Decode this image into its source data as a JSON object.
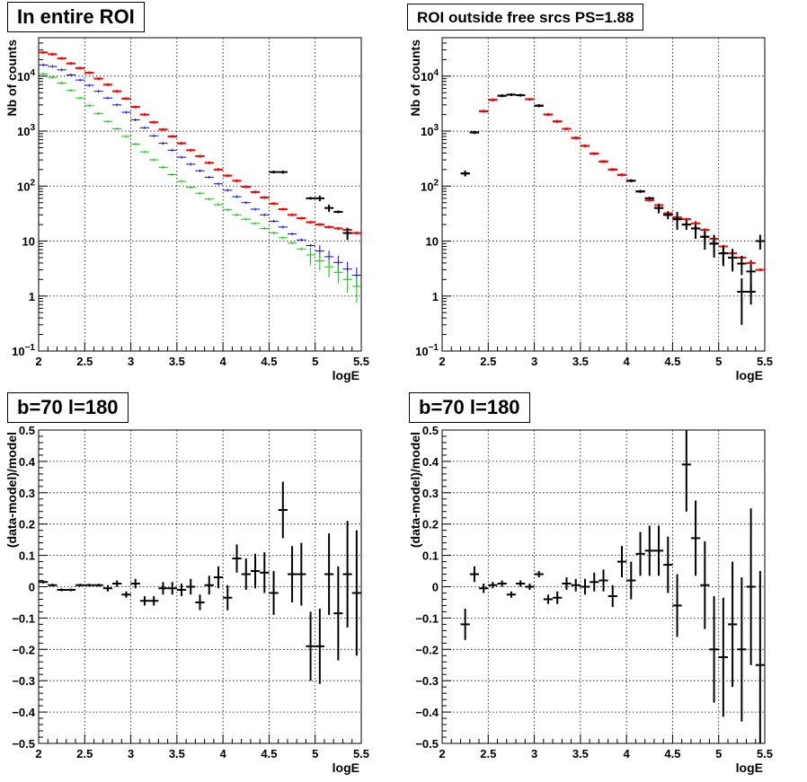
{
  "chart_data": [
    {
      "type": "scatter",
      "title": "In entire ROI",
      "xlabel": "logE",
      "ylabel": "Nb of counts",
      "xlim": [
        2,
        5.5
      ],
      "ylim": [
        0.1,
        50000
      ],
      "yscale": "log",
      "xticks": [
        "2",
        "2.5",
        "3",
        "3.5",
        "4",
        "4.5",
        "5",
        "5.5"
      ],
      "yticks": [
        {
          "v": 0.1,
          "base": "10",
          "exp": "−1"
        },
        {
          "v": 1,
          "base": "1"
        },
        {
          "v": 10,
          "base": "10"
        },
        {
          "v": 100,
          "base": "10",
          "exp": "2"
        },
        {
          "v": 1000,
          "base": "10",
          "exp": "3"
        },
        {
          "v": 10000,
          "base": "10",
          "exp": "4"
        }
      ],
      "grid": true,
      "series": [
        {
          "color": "#ff0000",
          "width": 2,
          "x": [
            2.05,
            2.15,
            2.25,
            2.35,
            2.45,
            2.55,
            2.65,
            2.75,
            2.85,
            2.95,
            3.05,
            3.15,
            3.25,
            3.35,
            3.45,
            3.55,
            3.65,
            3.75,
            3.85,
            3.95,
            4.05,
            4.15,
            4.25,
            4.35,
            4.45,
            4.55,
            4.65,
            4.75,
            4.85,
            4.95,
            5.05,
            5.15,
            5.25,
            5.35,
            5.45
          ],
          "y": [
            27000,
            25000,
            21000,
            17000,
            14000,
            11500,
            9000,
            7000,
            5300,
            3900,
            2750,
            2000,
            1450,
            1070,
            800,
            600,
            450,
            350,
            265,
            200,
            155,
            125,
            97,
            78,
            62,
            48,
            38,
            30,
            26,
            22,
            20,
            18,
            17,
            16,
            14
          ],
          "yerr": [
            0,
            0,
            0,
            0,
            0,
            0,
            0,
            0,
            0,
            0,
            0,
            0,
            0,
            0,
            0,
            0,
            0,
            0,
            0,
            0,
            0,
            0,
            0,
            0,
            0,
            0,
            0,
            0,
            0,
            0,
            0,
            0,
            0,
            0,
            0
          ]
        },
        {
          "color": "#0000ff",
          "width": 1,
          "x": [
            2.05,
            2.15,
            2.25,
            2.35,
            2.45,
            2.55,
            2.65,
            2.75,
            2.85,
            2.95,
            3.05,
            3.15,
            3.25,
            3.35,
            3.45,
            3.55,
            3.65,
            3.75,
            3.85,
            3.95,
            4.05,
            4.15,
            4.25,
            4.35,
            4.45,
            4.55,
            4.65,
            4.75,
            4.85,
            4.95,
            5.05,
            5.15,
            5.25,
            5.35,
            5.45
          ],
          "y": [
            16000,
            15000,
            13000,
            10500,
            8500,
            6800,
            5300,
            4000,
            3000,
            2200,
            1600,
            1150,
            820,
            600,
            450,
            335,
            250,
            190,
            145,
            110,
            84,
            64,
            50,
            38,
            30,
            23,
            18,
            13.5,
            10.5,
            8.3,
            6.6,
            5.2,
            4.1,
            3.1,
            2.4
          ],
          "yerr": [
            0,
            0,
            0,
            0,
            0,
            0,
            0,
            0,
            0,
            0,
            0,
            0,
            0,
            0,
            0,
            0,
            0,
            0,
            0,
            0,
            0,
            0,
            0,
            0,
            0,
            0,
            0,
            0,
            0,
            0,
            1.8,
            1.5,
            1.3,
            1.1,
            0.9
          ]
        },
        {
          "color": "#00cc00",
          "width": 1,
          "x": [
            2.05,
            2.15,
            2.25,
            2.35,
            2.45,
            2.55,
            2.65,
            2.75,
            2.85,
            2.95,
            3.05,
            3.15,
            3.25,
            3.35,
            3.45,
            3.55,
            3.65,
            3.75,
            3.85,
            3.95,
            4.05,
            4.15,
            4.25,
            4.35,
            4.45,
            4.55,
            4.65,
            4.75,
            4.85,
            4.95,
            5.05,
            5.15,
            5.25,
            5.35,
            5.45
          ],
          "y": [
            11000,
            9500,
            7500,
            5500,
            4000,
            2900,
            2100,
            1500,
            1100,
            800,
            580,
            420,
            300,
            220,
            162,
            122,
            95,
            74,
            58,
            46,
            37,
            30,
            25,
            21,
            17,
            14,
            11.5,
            9.2,
            7.2,
            5.6,
            4.4,
            3.4,
            2.7,
            2.0,
            1.5
          ],
          "yerr": [
            0,
            0,
            0,
            0,
            0,
            0,
            0,
            0,
            0,
            0,
            0,
            0,
            0,
            0,
            0,
            0,
            0,
            0,
            0,
            0,
            0,
            0,
            0,
            0,
            0,
            0,
            0,
            0,
            0,
            2.0,
            1.5,
            1.2,
            1.0,
            0.85,
            0.75
          ]
        },
        {
          "color": "#000000",
          "width": 2,
          "x": [
            4.55,
            4.65,
            4.95,
            5.05,
            5.15,
            5.25,
            5.35
          ],
          "y": [
            180,
            180,
            60,
            60,
            40,
            34,
            14
          ],
          "yerr": [
            0,
            12,
            0,
            7,
            6,
            0,
            3.5
          ]
        }
      ]
    },
    {
      "type": "scatter",
      "title": "ROI outside free srcs PS=1.88",
      "xlabel": "logE",
      "ylabel": "Nb of counts",
      "xlim": [
        2,
        5.5
      ],
      "ylim": [
        0.1,
        50000
      ],
      "yscale": "log",
      "xticks": [
        "2",
        "2.5",
        "3",
        "3.5",
        "4",
        "4.5",
        "5",
        "5.5"
      ],
      "yticks": [
        {
          "v": 0.1,
          "base": "10",
          "exp": "−1"
        },
        {
          "v": 1,
          "base": "1"
        },
        {
          "v": 10,
          "base": "10"
        },
        {
          "v": 100,
          "base": "10",
          "exp": "2"
        },
        {
          "v": 1000,
          "base": "10",
          "exp": "3"
        },
        {
          "v": 10000,
          "base": "10",
          "exp": "4"
        }
      ],
      "grid": true,
      "series": [
        {
          "color": "#000000",
          "width": 2,
          "x": [
            2.25,
            2.35,
            2.45,
            2.55,
            2.65,
            2.75,
            2.85,
            2.95,
            3.05,
            3.15,
            3.25,
            3.35,
            3.45,
            3.55,
            3.65,
            3.75,
            3.85,
            3.95,
            4.05,
            4.15,
            4.25,
            4.35,
            4.45,
            4.55,
            4.65,
            4.75,
            4.85,
            4.95,
            5.05,
            5.15,
            5.25,
            5.35,
            5.45
          ],
          "y": [
            170,
            950,
            2300,
            3700,
            4400,
            4600,
            4500,
            3800,
            2900,
            2000,
            1500,
            1100,
            750,
            540,
            390,
            280,
            200,
            160,
            125,
            80,
            60,
            40,
            30,
            25,
            20,
            17,
            12,
            9,
            6,
            5,
            1.2,
            2.8,
            10
          ],
          "yerr": [
            20,
            0,
            0,
            0,
            0,
            0,
            0,
            0,
            0,
            0,
            0,
            0,
            0,
            0,
            0,
            0,
            0,
            0,
            0,
            0,
            0,
            8,
            0,
            9,
            0,
            6,
            5,
            4,
            2.5,
            2.2,
            0.9,
            1.7,
            3
          ]
        },
        {
          "color": "#ff0000",
          "width": 2,
          "x": [
            2.25,
            2.35,
            2.45,
            2.55,
            2.65,
            2.75,
            2.85,
            2.95,
            3.05,
            3.15,
            3.25,
            3.35,
            3.45,
            3.55,
            3.65,
            3.75,
            3.85,
            3.95,
            4.05,
            4.15,
            4.25,
            4.35,
            4.45,
            4.55,
            4.65,
            4.75,
            4.85,
            4.95,
            5.05,
            5.15,
            5.25,
            5.35,
            5.45
          ],
          "y": [
            170,
            940,
            2300,
            3700,
            4400,
            4600,
            4500,
            3800,
            2900,
            2000,
            1500,
            1100,
            750,
            540,
            390,
            280,
            200,
            160,
            125,
            80,
            55,
            45,
            32,
            27,
            25,
            21,
            16,
            11,
            8,
            6,
            5,
            4,
            3
          ],
          "yerr": [
            0,
            0,
            0,
            0,
            0,
            0,
            0,
            0,
            0,
            0,
            0,
            0,
            0,
            0,
            0,
            0,
            0,
            0,
            0,
            0,
            0,
            0,
            0,
            0,
            0,
            0,
            0,
            0,
            0,
            0,
            0,
            0,
            0
          ]
        },
        {
          "color": "#000000",
          "width": 2,
          "x": [
            2.25,
            2.35,
            2.65,
            2.75,
            2.85,
            3.05,
            4.05,
            4.15,
            4.25,
            4.35,
            4.45,
            4.55,
            4.65,
            4.75,
            4.85,
            4.95,
            5.05,
            5.15,
            5.25,
            5.35
          ],
          "y": [
            170,
            950,
            4400,
            4600,
            4500,
            2900,
            125,
            80,
            60,
            40,
            30,
            25,
            20,
            17,
            12,
            9,
            6,
            5,
            3.9,
            1.2
          ],
          "yerr": [
            20,
            60,
            0,
            0,
            0,
            0,
            0,
            0,
            0,
            7,
            5,
            5,
            4,
            3,
            3,
            3,
            2,
            2,
            1.5,
            0.5
          ]
        }
      ]
    },
    {
      "type": "scatter",
      "title": "b=70 l=180",
      "xlabel": "logE",
      "ylabel": "(data-model)/model",
      "xlim": [
        2,
        5.5
      ],
      "ylim": [
        -0.5,
        0.5
      ],
      "yscale": "linear",
      "xticks": [
        "2",
        "2.5",
        "3",
        "3.5",
        "4",
        "4.5",
        "5",
        "5.5"
      ],
      "yticks": [
        "−0.5",
        "−0.4",
        "−0.3",
        "−0.2",
        "−0.1",
        "0",
        "0.1",
        "0.2",
        "0.3",
        "0.4",
        "0.5"
      ],
      "grid": true,
      "series": [
        {
          "color": "#000000",
          "width": 2,
          "x": [
            2.05,
            2.15,
            2.25,
            2.35,
            2.45,
            2.55,
            2.65,
            2.75,
            2.85,
            2.95,
            3.05,
            3.15,
            3.25,
            3.35,
            3.45,
            3.55,
            3.65,
            3.75,
            3.85,
            3.95,
            4.05,
            4.15,
            4.25,
            4.35,
            4.45,
            4.55,
            4.65,
            4.75,
            4.85,
            4.95,
            5.05,
            5.15,
            5.25,
            5.35,
            5.45
          ],
          "y": [
            0.015,
            0.005,
            -0.01,
            -0.01,
            0.005,
            0.005,
            0.005,
            -0.005,
            0.01,
            -0.025,
            0.01,
            -0.045,
            -0.045,
            -0.005,
            -0.005,
            -0.01,
            0,
            -0.05,
            0.005,
            0.03,
            -0.035,
            0.09,
            0.04,
            0.05,
            0.045,
            -0.02,
            0.245,
            0.04,
            0.04,
            -0.19,
            -0.19,
            0.04,
            -0.085,
            0.04,
            -0.02
          ],
          "yerr": [
            0,
            0,
            0,
            0,
            0,
            0,
            0,
            0.01,
            0.01,
            0.01,
            0.015,
            0.015,
            0.015,
            0.02,
            0.02,
            0.02,
            0.025,
            0.025,
            0.03,
            0.035,
            0.04,
            0.045,
            0.05,
            0.055,
            0.065,
            0.07,
            0.09,
            0.09,
            0.1,
            0.11,
            0.12,
            0.13,
            0.15,
            0.17,
            0.2
          ]
        }
      ]
    },
    {
      "type": "scatter",
      "title": "b=70 l=180",
      "xlabel": "logE",
      "ylabel": "(data-model)/model",
      "xlim": [
        2,
        5.5
      ],
      "ylim": [
        -0.5,
        0.5
      ],
      "yscale": "linear",
      "xticks": [
        "2",
        "2.5",
        "3",
        "3.5",
        "4",
        "4.5",
        "5",
        "5.5"
      ],
      "yticks": [
        "−0.5",
        "−0.4",
        "−0.3",
        "−0.2",
        "−0.1",
        "0",
        "0.1",
        "0.2",
        "0.3",
        "0.4",
        "0.5"
      ],
      "grid": true,
      "series": [
        {
          "color": "#000000",
          "width": 2,
          "x": [
            2.25,
            2.35,
            2.45,
            2.55,
            2.65,
            2.75,
            2.85,
            2.95,
            3.05,
            3.15,
            3.25,
            3.35,
            3.45,
            3.55,
            3.65,
            3.75,
            3.85,
            3.95,
            4.05,
            4.15,
            4.25,
            4.35,
            4.45,
            4.55,
            4.65,
            4.75,
            4.85,
            4.95,
            5.05,
            5.15,
            5.25,
            5.35,
            5.45
          ],
          "y": [
            -0.12,
            0.04,
            -0.005,
            0.005,
            0.01,
            -0.025,
            0.01,
            0,
            0.04,
            -0.04,
            -0.035,
            0.01,
            0.005,
            0,
            0.015,
            0.02,
            -0.03,
            0.08,
            0.02,
            0.105,
            0.115,
            0.115,
            0.07,
            -0.06,
            0.39,
            0.155,
            0.005,
            -0.2,
            -0.225,
            -0.12,
            -0.2,
            0,
            -0.25
          ],
          "yerr": [
            0.05,
            0.025,
            0.015,
            0.01,
            0.01,
            0.01,
            0.01,
            0.01,
            0.01,
            0.015,
            0.02,
            0.02,
            0.02,
            0.025,
            0.03,
            0.035,
            0.035,
            0.05,
            0.06,
            0.07,
            0.08,
            0.08,
            0.09,
            0.1,
            0.15,
            0.12,
            0.14,
            0.17,
            0.19,
            0.2,
            0.23,
            0.25,
            0.3
          ]
        }
      ]
    }
  ]
}
